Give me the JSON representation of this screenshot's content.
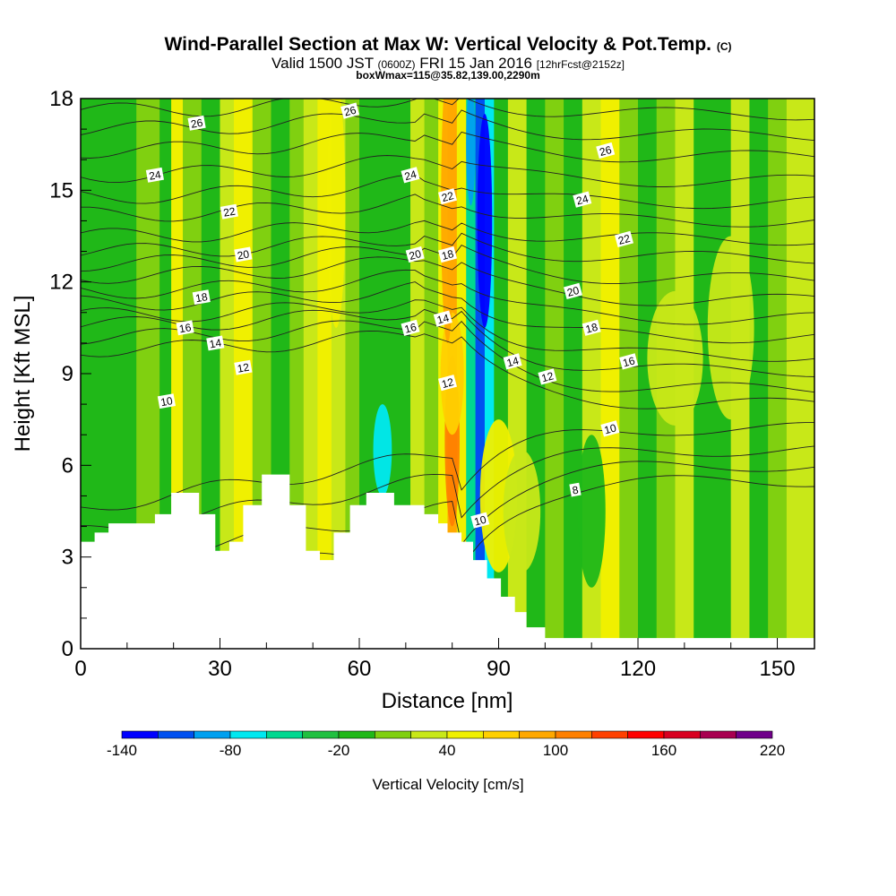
{
  "header": {
    "title_main": "Wind-Parallel Section at Max W: Vertical Velocity & Pot.Temp.",
    "title_mark": "(C)",
    "valid_prefix": "Valid 1500 JST",
    "valid_utc": "(0600Z)",
    "valid_date": "FRI 15 Jan 2016",
    "forecast": "[12hrFcst@2152z]",
    "box_info": "boxWmax=115@35.82,139.00,2290m"
  },
  "chart_data": {
    "type": "heatmap",
    "xlabel": "Distance [nm]",
    "ylabel": "Height [Kft MSL]",
    "xlim": [
      0,
      158
    ],
    "ylim": [
      0,
      18
    ],
    "x_ticks": [
      0,
      30,
      60,
      90,
      120,
      150
    ],
    "y_ticks": [
      0,
      3,
      6,
      9,
      12,
      15,
      18
    ],
    "colorbar": {
      "label": "Vertical Velocity [cm/s]",
      "tick_labels": [
        "-140",
        "-80",
        "-20",
        "40",
        "100",
        "160",
        "220"
      ],
      "levels": [
        -140,
        -120,
        -100,
        -80,
        -60,
        -40,
        -20,
        0,
        20,
        40,
        60,
        80,
        100,
        120,
        140,
        160,
        180,
        200,
        220
      ],
      "colors": [
        "#0000ff",
        "#0050f0",
        "#00a0f0",
        "#00e8f0",
        "#00d890",
        "#20c040",
        "#20b818",
        "#80d010",
        "#c8e818",
        "#f0f000",
        "#ffd000",
        "#ffa800",
        "#ff8000",
        "#ff4000",
        "#ff0000",
        "#d80020",
        "#a80050",
        "#70008a"
      ]
    },
    "terrain_profile": [
      [
        0,
        3.5
      ],
      [
        3,
        3.5
      ],
      [
        3,
        3.8
      ],
      [
        6,
        3.8
      ],
      [
        6,
        4.1
      ],
      [
        16,
        4.1
      ],
      [
        16,
        4.4
      ],
      [
        19.5,
        4.4
      ],
      [
        19.5,
        5.1
      ],
      [
        25.5,
        5.1
      ],
      [
        25.5,
        4.4
      ],
      [
        29,
        4.4
      ],
      [
        29,
        3.2
      ],
      [
        32,
        3.2
      ],
      [
        32,
        3.5
      ],
      [
        35,
        3.5
      ],
      [
        35,
        4.7
      ],
      [
        39,
        4.7
      ],
      [
        39,
        5.7
      ],
      [
        45,
        5.7
      ],
      [
        45,
        4.7
      ],
      [
        48.5,
        4.7
      ],
      [
        48.5,
        3.2
      ],
      [
        51.5,
        3.2
      ],
      [
        51.5,
        2.9
      ],
      [
        54.5,
        2.9
      ],
      [
        54.5,
        3.8
      ],
      [
        58,
        3.8
      ],
      [
        58,
        4.7
      ],
      [
        61.5,
        4.7
      ],
      [
        61.5,
        5.1
      ],
      [
        67.5,
        5.1
      ],
      [
        67.5,
        4.7
      ],
      [
        74,
        4.7
      ],
      [
        74,
        4.4
      ],
      [
        77,
        4.4
      ],
      [
        77,
        4.1
      ],
      [
        79,
        4.1
      ],
      [
        79,
        3.8
      ],
      [
        82,
        3.8
      ],
      [
        82,
        3.5
      ],
      [
        84.5,
        3.5
      ],
      [
        84.5,
        2.9
      ],
      [
        87.5,
        2.9
      ],
      [
        87.5,
        2.3
      ],
      [
        90.5,
        2.3
      ],
      [
        90.5,
        1.7
      ],
      [
        93.5,
        1.7
      ],
      [
        93.5,
        1.2
      ],
      [
        96,
        1.2
      ],
      [
        96,
        0.7
      ],
      [
        100,
        0.7
      ],
      [
        100,
        0.35
      ],
      [
        158,
        0.35
      ]
    ],
    "theta_contours": [
      {
        "label": "8",
        "y0": 1.8,
        "y1": 5.5,
        "label_at": [
          106.5,
          5.2
        ]
      },
      {
        "label": "9",
        "y0": 2.8,
        "y1": 6.0
      },
      {
        "label": "10",
        "y0": 3.8,
        "y1": 6.5,
        "label_at": [
          18.5,
          8.1
        ]
      },
      {
        "label": "11",
        "y0": 4.6,
        "y1": 7.2
      },
      {
        "label": "12",
        "y0": 9.8,
        "y1": 8.0,
        "label_at": [
          35,
          9.2
        ]
      },
      {
        "label": "13",
        "y0": 10.2,
        "y1": 8.5
      },
      {
        "label": "14",
        "y0": 10.6,
        "y1": 9.1,
        "label_at": [
          29,
          10.0
        ]
      },
      {
        "label": "15",
        "y0": 10.9,
        "y1": 9.6
      },
      {
        "label": "16",
        "y0": 11.3,
        "y1": 10.2,
        "label_at": [
          22.5,
          10.5
        ]
      },
      {
        "label": "17",
        "y0": 11.7,
        "y1": 10.8
      },
      {
        "label": "18",
        "y0": 12.2,
        "y1": 11.4,
        "label_at": [
          26,
          11.5
        ]
      },
      {
        "label": "19",
        "y0": 12.6,
        "y1": 12.1
      },
      {
        "label": "20",
        "y0": 13.0,
        "y1": 12.8,
        "label_at": [
          35,
          12.9
        ]
      },
      {
        "label": "21",
        "y0": 13.5,
        "y1": 13.4
      },
      {
        "label": "22",
        "y0": 14.2,
        "y1": 14.0,
        "label_at": [
          32,
          14.3
        ]
      },
      {
        "label": "23",
        "y0": 14.8,
        "y1": 14.6
      },
      {
        "label": "24",
        "y0": 15.5,
        "y1": 15.3,
        "label_at": [
          16,
          15.5
        ]
      },
      {
        "label": "25",
        "y0": 16.3,
        "y1": 16.1
      },
      {
        "label": "26",
        "y0": 17.0,
        "y1": 16.8,
        "label_at": [
          25,
          17.2
        ]
      },
      {
        "label": "27",
        "y0": 17.6,
        "y1": 17.5
      }
    ],
    "extra_contour_labels": [
      {
        "label": "26",
        "x": 58,
        "y": 17.6
      },
      {
        "label": "24",
        "x": 71,
        "y": 15.5
      },
      {
        "label": "22",
        "x": 79,
        "y": 14.8
      },
      {
        "label": "20",
        "x": 72,
        "y": 12.9
      },
      {
        "label": "18",
        "x": 79,
        "y": 12.9
      },
      {
        "label": "16",
        "x": 71,
        "y": 10.5
      },
      {
        "label": "14",
        "x": 78,
        "y": 10.8
      },
      {
        "label": "12",
        "x": 79,
        "y": 8.7
      },
      {
        "label": "10",
        "x": 86,
        "y": 4.2
      },
      {
        "label": "14",
        "x": 93,
        "y": 9.4
      },
      {
        "label": "12",
        "x": 100.5,
        "y": 8.9
      },
      {
        "label": "10",
        "x": 114,
        "y": 7.2
      },
      {
        "label": "16",
        "x": 118,
        "y": 9.4
      },
      {
        "label": "18",
        "x": 110,
        "y": 10.5
      },
      {
        "label": "20",
        "x": 106,
        "y": 11.7
      },
      {
        "label": "22",
        "x": 117,
        "y": 13.4
      },
      {
        "label": "24",
        "x": 108,
        "y": 14.7
      },
      {
        "label": "26",
        "x": 113,
        "y": 16.3
      }
    ],
    "w_columns": [
      {
        "x": 0,
        "w": -20
      },
      {
        "x": 6,
        "w": -20
      },
      {
        "x": 12,
        "w": 0
      },
      {
        "x": 17,
        "w": -20
      },
      {
        "x": 19.5,
        "w": 40
      },
      {
        "x": 22,
        "w": 0
      },
      {
        "x": 26,
        "w": -20
      },
      {
        "x": 30,
        "w": 20
      },
      {
        "x": 33,
        "w": 40
      },
      {
        "x": 37,
        "w": 0
      },
      {
        "x": 41,
        "w": -20
      },
      {
        "x": 45,
        "w": 0
      },
      {
        "x": 48,
        "w": 20
      },
      {
        "x": 51,
        "w": 40
      },
      {
        "x": 54,
        "w": 20
      },
      {
        "x": 57,
        "w": 0
      },
      {
        "x": 60,
        "w": -20
      },
      {
        "x": 64,
        "w": -20
      },
      {
        "x": 68,
        "w": -20
      },
      {
        "x": 71,
        "w": 20
      },
      {
        "x": 74,
        "w": 0
      },
      {
        "x": 77,
        "w": 40
      },
      {
        "x": 79,
        "w": 80
      },
      {
        "x": 81,
        "w": 40
      },
      {
        "x": 83,
        "w": -60
      },
      {
        "x": 85,
        "w": -120
      },
      {
        "x": 87,
        "w": -80
      },
      {
        "x": 89,
        "w": -20
      },
      {
        "x": 92,
        "w": 20
      },
      {
        "x": 96,
        "w": -20
      },
      {
        "x": 100,
        "w": 0
      },
      {
        "x": 104,
        "w": -20
      },
      {
        "x": 108,
        "w": 20
      },
      {
        "x": 112,
        "w": 40
      },
      {
        "x": 116,
        "w": 0
      },
      {
        "x": 120,
        "w": -20
      },
      {
        "x": 124,
        "w": 0
      },
      {
        "x": 128,
        "w": 20
      },
      {
        "x": 132,
        "w": -20
      },
      {
        "x": 136,
        "w": -20
      },
      {
        "x": 140,
        "w": 20
      },
      {
        "x": 144,
        "w": -20
      },
      {
        "x": 148,
        "w": 0
      },
      {
        "x": 152,
        "w": 20
      },
      {
        "x": 158,
        "w": 0
      }
    ],
    "w_blobs": [
      {
        "x": 80,
        "y": 6.8,
        "rx": 1.6,
        "ry": 2.8,
        "w": 100
      },
      {
        "x": 80,
        "y": 9.0,
        "rx": 2.5,
        "ry": 2.0,
        "w": 60
      },
      {
        "x": 79,
        "y": 14.5,
        "rx": 1.4,
        "ry": 4.5,
        "w": 80
      },
      {
        "x": 87,
        "y": 14.0,
        "rx": 1.6,
        "ry": 3.5,
        "w": -140
      },
      {
        "x": 84,
        "y": 16.5,
        "rx": 1.0,
        "ry": 2.0,
        "w": -100
      },
      {
        "x": 65,
        "y": 6.5,
        "rx": 2.0,
        "ry": 1.5,
        "w": -80
      },
      {
        "x": 90,
        "y": 5.0,
        "rx": 4.0,
        "ry": 2.5,
        "w": 40
      },
      {
        "x": 95,
        "y": 4.5,
        "rx": 4.0,
        "ry": 2.0,
        "w": 20
      },
      {
        "x": 128,
        "y": 9.5,
        "rx": 6.0,
        "ry": 2.2,
        "w": 20
      },
      {
        "x": 140,
        "y": 10.5,
        "rx": 5.0,
        "ry": 3.0,
        "w": 20
      },
      {
        "x": 110,
        "y": 4.5,
        "rx": 3.0,
        "ry": 2.5,
        "w": -20
      },
      {
        "x": 55,
        "y": 14.5,
        "rx": 2.0,
        "ry": 4.0,
        "w": 40
      }
    ]
  }
}
